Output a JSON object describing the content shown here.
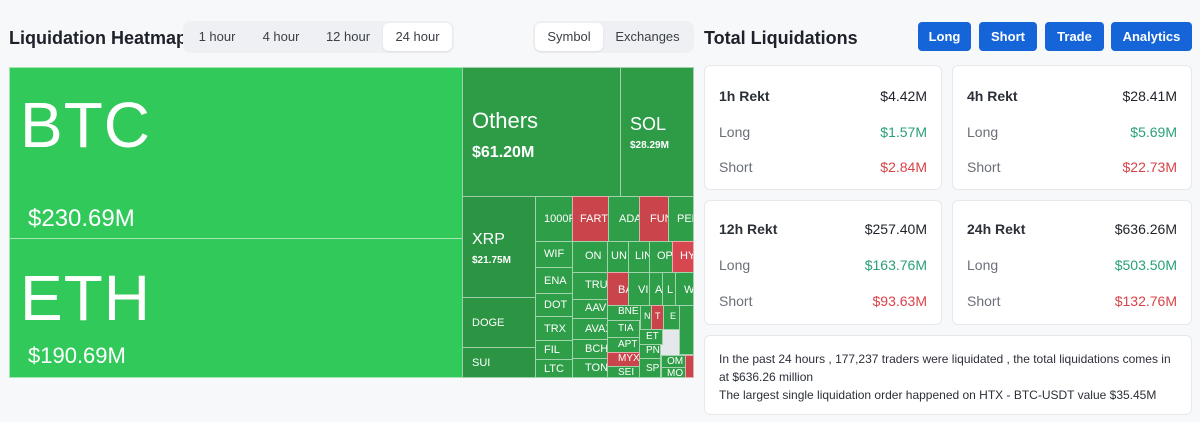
{
  "heatmap": {
    "title": "Liquidation Heatmap",
    "time_tabs": [
      "1 hour",
      "4 hour",
      "12 hour",
      "24 hour"
    ],
    "active_time_tab": "24 hour",
    "view_tabs": [
      "Symbol",
      "Exchanges"
    ],
    "active_view_tab": "Symbol",
    "tiles": {
      "btc": {
        "symbol": "BTC",
        "value": "$230.69M"
      },
      "eth": {
        "symbol": "ETH",
        "value": "$190.69M"
      },
      "others": {
        "symbol": "Others",
        "value": "$61.20M"
      },
      "sol": {
        "symbol": "SOL",
        "value": "$28.29M"
      },
      "xrp": {
        "symbol": "XRP",
        "value": "$21.75M"
      },
      "doge": {
        "symbol": "DOGE"
      },
      "sui": {
        "symbol": "SUI"
      },
      "small": [
        "1000F",
        "FARTC",
        "ADA",
        "FUN",
        "PEP",
        "WIF",
        "ON",
        "UN",
        "LIN",
        "OP",
        "HY",
        "ENA",
        "TRU",
        "BA",
        "VI",
        "A",
        "L",
        "W",
        "DOT",
        "AAVE",
        "BNE",
        "N",
        "T",
        "E",
        "TRX",
        "AVAX",
        "TIA",
        "ET",
        "FIL",
        "BCH",
        "APT",
        "PN",
        "LTC",
        "TON",
        "MYX",
        "OM",
        "SEI",
        "SP",
        "MO"
      ]
    }
  },
  "totals": {
    "title": "Total Liquidations",
    "buttons": [
      "Long",
      "Short",
      "Trade",
      "Analytics"
    ],
    "cards": [
      {
        "label": "1h Rekt",
        "total": "$4.42M",
        "long_label": "Long",
        "long": "$1.57M",
        "short_label": "Short",
        "short": "$2.84M"
      },
      {
        "label": "4h Rekt",
        "total": "$28.41M",
        "long_label": "Long",
        "long": "$5.69M",
        "short_label": "Short",
        "short": "$22.73M"
      },
      {
        "label": "12h Rekt",
        "total": "$257.40M",
        "long_label": "Long",
        "long": "$163.76M",
        "short_label": "Short",
        "short": "$93.63M"
      },
      {
        "label": "24h Rekt",
        "total": "$636.26M",
        "long_label": "Long",
        "long": "$503.50M",
        "short_label": "Short",
        "short": "$132.76M"
      }
    ],
    "summary_line1": "In the past 24 hours , 177,237 traders were liquidated , the total liquidations comes in at $636.26 million",
    "summary_line2": "The largest single liquidation order happened on HTX - BTC-USDT value $35.45M"
  },
  "colors": {
    "long": "#2aa07a",
    "short": "#d8434a",
    "accent": "#1565d8",
    "heat_green": "#31c95a",
    "heat_dark": "#2e9c47",
    "heat_red": "#c9454b"
  }
}
